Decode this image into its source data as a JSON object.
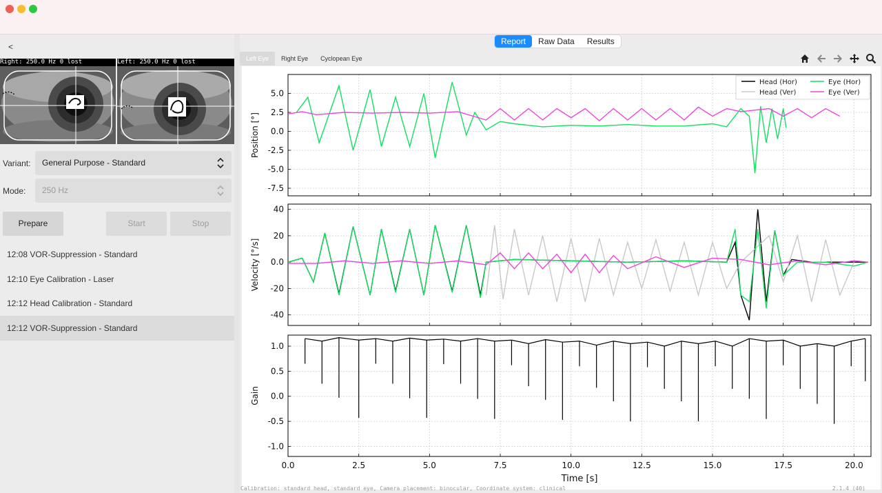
{
  "window": {
    "controls": [
      "close",
      "minimize",
      "zoom"
    ]
  },
  "left_panel": {
    "back_label": "<",
    "cameras": [
      {
        "header": "Right: 250.0 Hz 0 lost"
      },
      {
        "header": "Left: 250.0 Hz 0 lost"
      }
    ],
    "variant": {
      "label": "Variant:",
      "value": "General Purpose - Standard"
    },
    "mode": {
      "label": "Mode:",
      "value": "250 Hz"
    },
    "buttons": {
      "prepare": "Prepare",
      "start": "Start",
      "stop": "Stop"
    },
    "sessions": [
      {
        "label": "12:08 VOR-Suppression - Standard"
      },
      {
        "label": "12:10 Eye Calibration - Laser"
      },
      {
        "label": "12:12 Head Calibration - Standard"
      },
      {
        "label": "12:12 VOR-Suppression - Standard"
      }
    ]
  },
  "right_panel": {
    "view_tabs": [
      "Report",
      "Raw Data",
      "Results"
    ],
    "active_view_tab": "Report",
    "eye_tabs": [
      "Left Eye",
      "Right Eye",
      "Cyclopean Eye"
    ],
    "active_eye_tab": "Left Eye",
    "toolbar_icons": [
      "home-icon",
      "back-arrow-icon",
      "forward-arrow-icon",
      "pan-icon",
      "zoom-icon"
    ],
    "footer_left": "Calibration: standard head, standard eye, Camera placement: binocular, Coordinate system: clinical",
    "footer_right": "2.1.4 (40)"
  },
  "chart_data": [
    {
      "type": "line",
      "xlabel": "",
      "ylabel": "Position [°]",
      "xlim": [
        0,
        20.6
      ],
      "ylim": [
        -8.5,
        7.5
      ],
      "yticks": [
        -7.5,
        -5.0,
        -2.5,
        0.0,
        2.5,
        5.0
      ],
      "legend": "top-right",
      "series": [
        {
          "name": "Head (Hor)",
          "color": "#000000",
          "x": [],
          "y": []
        },
        {
          "name": "Head (Ver)",
          "color": "#c8c8c8",
          "x": [],
          "y": []
        },
        {
          "name": "Eye (Hor)",
          "color": "#10e060",
          "x": [
            0.3,
            0.7,
            1.1,
            1.8,
            2.3,
            2.9,
            3.3,
            3.8,
            4.3,
            4.8,
            5.2,
            5.8,
            6.3,
            6.6,
            7.0,
            7.5,
            8.0,
            9.0,
            10.0,
            11.0,
            12.0,
            13.0,
            14.0,
            15.0,
            15.5,
            16.0,
            16.3,
            16.5,
            16.7,
            16.9,
            17.1,
            17.3,
            17.5,
            17.6
          ],
          "y": [
            2.5,
            4.5,
            -1.5,
            6.0,
            -2.5,
            5.5,
            -2.0,
            4.5,
            -2.0,
            5.0,
            -3.5,
            6.5,
            -0.5,
            2.5,
            0.2,
            1.3,
            1.0,
            0.6,
            0.8,
            0.7,
            0.9,
            0.7,
            0.7,
            1.0,
            0.6,
            3.0,
            2.0,
            -5.5,
            3.3,
            -1.5,
            3.0,
            -1.0,
            3.0,
            0.5
          ]
        },
        {
          "name": "Eye (Ver)",
          "color": "#ee44dd",
          "x": [
            0.0,
            0.5,
            1.0,
            2.0,
            3.0,
            4.0,
            5.0,
            6.0,
            7.0,
            7.5,
            8.0,
            8.5,
            9.0,
            9.5,
            10.0,
            10.5,
            11.0,
            11.5,
            12.0,
            12.5,
            13.0,
            13.5,
            14.0,
            14.5,
            15.0,
            15.5,
            16.0,
            16.5,
            17.0,
            17.5,
            18.0,
            18.5,
            19.0,
            19.5
          ],
          "y": [
            2.3,
            2.6,
            2.2,
            2.5,
            2.4,
            2.5,
            2.4,
            2.6,
            1.5,
            3.0,
            1.5,
            3.0,
            1.5,
            3.0,
            1.8,
            3.0,
            1.4,
            3.0,
            1.5,
            3.0,
            1.5,
            3.0,
            1.5,
            3.2,
            2.0,
            3.0,
            2.6,
            2.8,
            3.0,
            2.0,
            3.0,
            1.8,
            3.0,
            2.0
          ]
        }
      ]
    },
    {
      "type": "line",
      "xlabel": "",
      "ylabel": "Velocity [°/s]",
      "xlim": [
        0,
        20.6
      ],
      "ylim": [
        -48,
        44
      ],
      "yticks": [
        -40,
        -20,
        0,
        20,
        40
      ],
      "series": [
        {
          "name": "Head (Hor)",
          "color": "#000000",
          "x": [
            0.0,
            0.5,
            0.9,
            1.3,
            1.8,
            2.3,
            2.9,
            3.3,
            3.8,
            4.3,
            4.8,
            5.2,
            5.8,
            6.3,
            6.8,
            7.0,
            8.0,
            10.0,
            12.0,
            14.0,
            15.5,
            15.8,
            16.0,
            16.3,
            16.6,
            16.9,
            17.2,
            17.5,
            17.8,
            18.5,
            19.5,
            20.5
          ],
          "y": [
            0,
            3,
            -15,
            22,
            -24,
            27,
            -25,
            25,
            -22,
            25,
            -25,
            28,
            -22,
            28,
            -25,
            0,
            2,
            1,
            0,
            1,
            0,
            15,
            -25,
            -44,
            40,
            -30,
            24,
            -10,
            2,
            0,
            0,
            0
          ]
        },
        {
          "name": "Head (Ver)",
          "color": "#c8c8c8",
          "x": [
            7.0,
            7.3,
            7.6,
            8.0,
            8.5,
            9.0,
            9.5,
            10.0,
            10.5,
            11.0,
            11.5,
            12.0,
            12.5,
            13.0,
            13.5,
            14.0,
            14.5,
            15.0,
            15.5,
            16.0,
            17.0,
            17.5,
            18.0,
            18.5,
            19.0,
            19.5,
            20.0
          ],
          "y": [
            -25,
            28,
            -28,
            25,
            -25,
            20,
            -30,
            18,
            -30,
            18,
            -25,
            15,
            -20,
            17,
            -22,
            15,
            -25,
            15,
            -20,
            0,
            20,
            -15,
            20,
            -30,
            17,
            -25,
            0
          ]
        },
        {
          "name": "Eye (Hor)",
          "color": "#10e060",
          "x": [
            0.0,
            0.5,
            0.9,
            1.3,
            1.8,
            2.3,
            2.9,
            3.3,
            3.8,
            4.3,
            4.8,
            5.2,
            5.8,
            6.3,
            6.8,
            7.0,
            8.0,
            10.0,
            12.0,
            14.0,
            15.5,
            15.8,
            16.0,
            16.3,
            16.6,
            16.9,
            17.2,
            17.5,
            18.0,
            19.0,
            20.0,
            20.5
          ],
          "y": [
            0,
            3,
            -15,
            22,
            -25,
            27,
            -25,
            25,
            -23,
            25,
            -25,
            28,
            -23,
            28,
            -27,
            0,
            2,
            1,
            0,
            1,
            0,
            25,
            -25,
            -30,
            25,
            -35,
            24,
            -10,
            0,
            0,
            -3,
            0
          ]
        },
        {
          "name": "Eye (Ver)",
          "color": "#ee44dd",
          "x": [
            0.0,
            1.0,
            2.0,
            3.0,
            4.0,
            5.0,
            6.0,
            7.0,
            7.5,
            8.0,
            8.5,
            9.0,
            9.5,
            10.0,
            10.5,
            11.0,
            11.5,
            12.0,
            13.0,
            14.0,
            15.0,
            16.0,
            17.0,
            18.0,
            19.0,
            20.0,
            20.5
          ],
          "y": [
            -1,
            -1,
            1,
            -1,
            1,
            -1,
            1,
            -2,
            7,
            -5,
            7,
            -5,
            6,
            -8,
            6,
            -8,
            5,
            -5,
            4,
            -4,
            3,
            2,
            -2,
            1,
            -2,
            1,
            0
          ]
        }
      ]
    },
    {
      "type": "line",
      "xlabel": "Time [s]",
      "ylabel": "Gain",
      "xlim": [
        0,
        20.6
      ],
      "ylim": [
        -1.2,
        1.22
      ],
      "yticks": [
        -1.0,
        -0.5,
        0.0,
        0.5,
        1.0
      ],
      "xticks": [
        0.0,
        2.5,
        5.0,
        7.5,
        10.0,
        12.5,
        15.0,
        17.5,
        20.0
      ],
      "series": [
        {
          "name": "Gain",
          "color": "#000000",
          "x": [
            0.6,
            1.2,
            1.8,
            2.5,
            3.1,
            3.7,
            4.3,
            4.9,
            5.5,
            6.1,
            6.7,
            7.3,
            7.9,
            8.5,
            9.1,
            9.7,
            10.3,
            10.9,
            11.5,
            12.1,
            12.7,
            13.3,
            13.9,
            14.5,
            15.1,
            15.7,
            16.3,
            16.9,
            17.5,
            18.1,
            18.7,
            19.3,
            19.9,
            20.4
          ],
          "y": [
            1.15,
            1.1,
            1.17,
            1.12,
            1.15,
            1.1,
            1.16,
            1.12,
            1.14,
            1.1,
            1.15,
            1.1,
            1.12,
            1.05,
            1.13,
            1.08,
            1.1,
            1.02,
            1.1,
            1.05,
            1.08,
            1.0,
            1.1,
            1.05,
            1.1,
            1.0,
            1.15,
            1.1,
            1.12,
            1.0,
            1.05,
            1.0,
            1.1,
            1.15
          ]
        }
      ]
    }
  ]
}
